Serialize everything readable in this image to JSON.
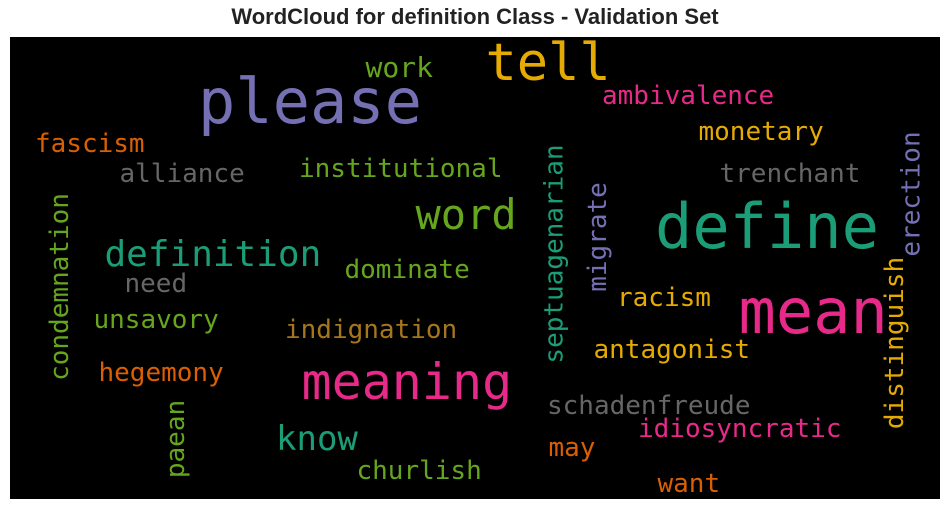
{
  "chart_data": {
    "type": "wordcloud",
    "title": "WordCloud for definition Class - Validation Set",
    "background": "#000000",
    "words": [
      {
        "text": "please",
        "color": "#7570b3",
        "vertical": false
      },
      {
        "text": "tell",
        "color": "#e6ab02",
        "vertical": false
      },
      {
        "text": "define",
        "color": "#1b9e77",
        "vertical": false
      },
      {
        "text": "mean",
        "color": "#e7298a",
        "vertical": false
      },
      {
        "text": "meaning",
        "color": "#e7298a",
        "vertical": false
      },
      {
        "text": "word",
        "color": "#66a61e",
        "vertical": false
      },
      {
        "text": "definition",
        "color": "#1b9e77",
        "vertical": false
      },
      {
        "text": "know",
        "color": "#1b9e77",
        "vertical": false
      },
      {
        "text": "work",
        "color": "#66a61e",
        "vertical": false
      },
      {
        "text": "ambivalence",
        "color": "#e7298a",
        "vertical": false
      },
      {
        "text": "monetary",
        "color": "#e6ab02",
        "vertical": false
      },
      {
        "text": "fascism",
        "color": "#d95f02",
        "vertical": false
      },
      {
        "text": "alliance",
        "color": "#666666",
        "vertical": false
      },
      {
        "text": "institutional",
        "color": "#66a61e",
        "vertical": false
      },
      {
        "text": "trenchant",
        "color": "#666666",
        "vertical": false
      },
      {
        "text": "dominate",
        "color": "#66a61e",
        "vertical": false
      },
      {
        "text": "need",
        "color": "#666666",
        "vertical": false
      },
      {
        "text": "unsavory",
        "color": "#66a61e",
        "vertical": false
      },
      {
        "text": "indignation",
        "color": "#a6761d",
        "vertical": false
      },
      {
        "text": "racism",
        "color": "#e6ab02",
        "vertical": false
      },
      {
        "text": "antagonist",
        "color": "#e6ab02",
        "vertical": false
      },
      {
        "text": "hegemony",
        "color": "#d95f02",
        "vertical": false
      },
      {
        "text": "schadenfreude",
        "color": "#666666",
        "vertical": false
      },
      {
        "text": "idiosyncratic",
        "color": "#e7298a",
        "vertical": false
      },
      {
        "text": "may",
        "color": "#d95f02",
        "vertical": false
      },
      {
        "text": "churlish",
        "color": "#66a61e",
        "vertical": false
      },
      {
        "text": "want",
        "color": "#d95f02",
        "vertical": false
      },
      {
        "text": "condemnation",
        "color": "#66a61e",
        "vertical": true
      },
      {
        "text": "paean",
        "color": "#66a61e",
        "vertical": true
      },
      {
        "text": "septuagenarian",
        "color": "#1b9e77",
        "vertical": true
      },
      {
        "text": "migrate",
        "color": "#7570b3",
        "vertical": true
      },
      {
        "text": "distinguish",
        "color": "#e6ab02",
        "vertical": true
      },
      {
        "text": "erection",
        "color": "#7570b3",
        "vertical": true
      }
    ]
  }
}
